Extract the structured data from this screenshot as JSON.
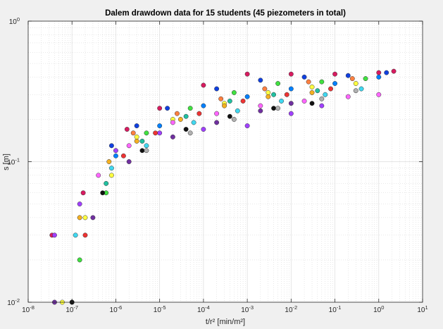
{
  "chart_data": {
    "type": "scatter",
    "title": "Dalem drawdown data for 15 students (45 piezometers in total)",
    "xlabel": "t/r² [min/m²]",
    "ylabel": "s [m]",
    "xscale": "log",
    "yscale": "log",
    "xlim": [
      1e-08,
      10
    ],
    "ylim": [
      0.01,
      1
    ],
    "xticks": [
      {
        "value": 1e-08,
        "base": "10",
        "exp": "-8"
      },
      {
        "value": 1e-07,
        "base": "10",
        "exp": "-7"
      },
      {
        "value": 1e-06,
        "base": "10",
        "exp": "-6"
      },
      {
        "value": 1e-05,
        "base": "10",
        "exp": "-5"
      },
      {
        "value": 0.0001,
        "base": "10",
        "exp": "-4"
      },
      {
        "value": 0.001,
        "base": "10",
        "exp": "-3"
      },
      {
        "value": 0.01,
        "base": "10",
        "exp": "-2"
      },
      {
        "value": 0.1,
        "base": "10",
        "exp": "-1"
      },
      {
        "value": 1,
        "base": "10",
        "exp": "0"
      },
      {
        "value": 10,
        "base": "10",
        "exp": "1"
      }
    ],
    "yticks": [
      {
        "value": 0.01,
        "base": "10",
        "exp": "-2"
      },
      {
        "value": 0.1,
        "base": "10",
        "exp": "-1"
      },
      {
        "value": 1,
        "base": "10",
        "exp": "0"
      }
    ],
    "grid": true,
    "minor_grid": true,
    "marker": "circle",
    "marker_edge_color": "#333333",
    "series": [
      {
        "color": "#d81b60",
        "values": [
          [
            3.5e-08,
            0.03
          ],
          [
            1.8e-07,
            0.06
          ],
          [
            1.8e-06,
            0.17
          ],
          [
            1e-05,
            0.24
          ],
          [
            0.0001,
            0.35
          ],
          [
            0.001,
            0.42
          ],
          [
            0.01,
            0.42
          ],
          [
            0.1,
            0.42
          ],
          [
            1,
            0.43
          ],
          [
            2.2,
            0.44
          ]
        ]
      },
      {
        "color": "#1040e0",
        "values": [
          [
            8e-07,
            0.13
          ],
          [
            3e-06,
            0.18
          ],
          [
            1.5e-05,
            0.24
          ],
          [
            0.0002,
            0.33
          ],
          [
            0.002,
            0.38
          ],
          [
            0.02,
            0.4
          ],
          [
            0.2,
            0.41
          ],
          [
            1.5,
            0.43
          ]
        ]
      },
      {
        "color": "#ffff40",
        "values": [
          [
            6e-08,
            0.01
          ],
          [
            2e-07,
            0.04
          ],
          [
            8e-07,
            0.08
          ],
          [
            3e-06,
            0.15
          ],
          [
            2e-05,
            0.2
          ],
          [
            0.0003,
            0.26
          ],
          [
            0.003,
            0.31
          ],
          [
            0.03,
            0.34
          ],
          [
            0.3,
            0.36
          ]
        ]
      },
      {
        "color": "#ff66ff",
        "values": [
          [
            4e-07,
            0.08
          ],
          [
            2e-06,
            0.13
          ],
          [
            2e-05,
            0.19
          ],
          [
            0.0002,
            0.22
          ],
          [
            0.002,
            0.25
          ],
          [
            0.02,
            0.27
          ],
          [
            0.2,
            0.29
          ],
          [
            1,
            0.3
          ]
        ]
      },
      {
        "color": "#a040ff",
        "values": [
          [
            4e-08,
            0.03
          ],
          [
            1.5e-07,
            0.05
          ],
          [
            1e-06,
            0.12
          ],
          [
            1e-05,
            0.16
          ],
          [
            0.0001,
            0.17
          ],
          [
            0.001,
            0.18
          ],
          [
            0.01,
            0.22
          ],
          [
            0.05,
            0.25
          ]
        ]
      },
      {
        "color": "#40e040",
        "values": [
          [
            1e-07,
            0.01
          ],
          [
            1.5e-07,
            0.02
          ],
          [
            6e-07,
            0.06
          ],
          [
            5e-06,
            0.16
          ],
          [
            5e-05,
            0.24
          ],
          [
            0.0005,
            0.31
          ],
          [
            0.005,
            0.36
          ],
          [
            0.05,
            0.37
          ],
          [
            0.5,
            0.39
          ]
        ]
      },
      {
        "color": "#40d8f0",
        "values": [
          [
            1.2e-07,
            0.03
          ],
          [
            8e-07,
            0.09
          ],
          [
            5e-06,
            0.13
          ],
          [
            6e-05,
            0.19
          ],
          [
            0.0006,
            0.23
          ],
          [
            0.006,
            0.27
          ],
          [
            0.06,
            0.3
          ],
          [
            0.4,
            0.33
          ]
        ]
      },
      {
        "color": "#111111",
        "values": [
          [
            1e-07,
            0.01
          ],
          [
            5e-07,
            0.06
          ],
          [
            4e-06,
            0.12
          ],
          [
            4e-05,
            0.17
          ],
          [
            0.0004,
            0.21
          ],
          [
            0.004,
            0.24
          ],
          [
            0.03,
            0.26
          ]
        ]
      },
      {
        "color": "#f5b020",
        "values": [
          [
            1.5e-07,
            0.04
          ],
          [
            7e-07,
            0.1
          ],
          [
            3e-06,
            0.14
          ],
          [
            3e-05,
            0.2
          ],
          [
            0.0003,
            0.25
          ],
          [
            0.003,
            0.29
          ],
          [
            0.03,
            0.31
          ]
        ]
      },
      {
        "color": "#ee3333",
        "values": [
          [
            2e-07,
            0.03
          ],
          [
            1.5e-06,
            0.11
          ],
          [
            8e-06,
            0.16
          ],
          [
            8e-05,
            0.22
          ],
          [
            0.0008,
            0.27
          ],
          [
            0.008,
            0.3
          ],
          [
            0.08,
            0.33
          ]
        ]
      },
      {
        "color": "#20c0a0",
        "values": [
          [
            6e-07,
            0.07
          ],
          [
            4e-06,
            0.14
          ],
          [
            4e-05,
            0.21
          ],
          [
            0.0004,
            0.27
          ],
          [
            0.004,
            0.3
          ],
          [
            0.04,
            0.32
          ]
        ]
      },
      {
        "color": "#b0b0b0",
        "values": [
          [
            5e-06,
            0.12
          ],
          [
            5e-05,
            0.16
          ],
          [
            0.0005,
            0.2
          ],
          [
            0.005,
            0.24
          ],
          [
            0.05,
            0.28
          ],
          [
            0.3,
            0.32
          ]
        ]
      },
      {
        "color": "#7030a0",
        "values": [
          [
            4e-08,
            0.01
          ],
          [
            3e-07,
            0.04
          ],
          [
            2e-06,
            0.1
          ],
          [
            2e-05,
            0.15
          ],
          [
            0.0002,
            0.19
          ],
          [
            0.002,
            0.23
          ],
          [
            0.01,
            0.26
          ]
        ]
      },
      {
        "color": "#ff8040",
        "values": [
          [
            2.5e-06,
            0.16
          ],
          [
            2.5e-05,
            0.22
          ],
          [
            0.00025,
            0.28
          ],
          [
            0.0025,
            0.33
          ],
          [
            0.025,
            0.37
          ],
          [
            0.25,
            0.39
          ]
        ]
      },
      {
        "color": "#0080ff",
        "values": [
          [
            1e-06,
            0.11
          ],
          [
            1e-05,
            0.18
          ],
          [
            0.0001,
            0.25
          ],
          [
            0.001,
            0.29
          ],
          [
            0.01,
            0.33
          ],
          [
            0.1,
            0.36
          ],
          [
            1,
            0.4
          ]
        ]
      }
    ]
  }
}
